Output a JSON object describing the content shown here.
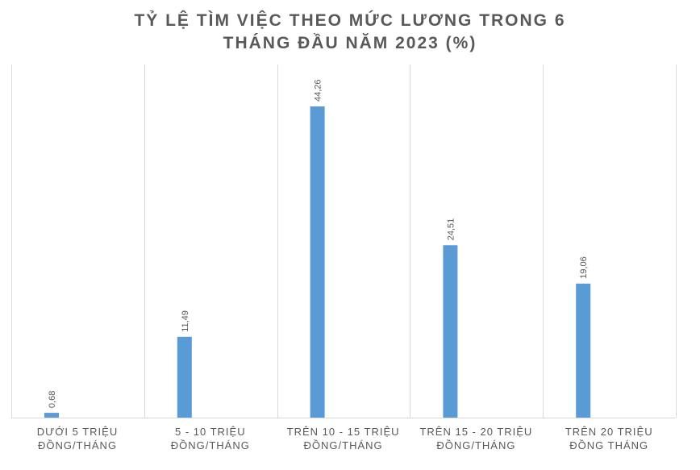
{
  "chart_data": {
    "type": "bar",
    "title_lines": [
      "TỶ LỆ TÌM VIỆC THEO MỨC LƯƠNG TRONG 6",
      "THÁNG ĐẦU NĂM 2023 (%)"
    ],
    "categories": [
      [
        "DƯỚI 5 TRIỆU",
        "ĐỒNG/THÁNG"
      ],
      [
        "5 - 10 TRIỆU",
        "ĐỒNG/THÁNG"
      ],
      [
        "TRÊN 10 - 15 TRIỆU",
        "ĐỒNG/THÁNG"
      ],
      [
        "TRÊN 15 - 20 TRIỆU",
        "ĐỒNG/THÁNG"
      ],
      [
        "TRÊN 20 TRIỆU",
        "ĐỒNG THÁNG"
      ]
    ],
    "values": [
      0.68,
      11.49,
      44.26,
      24.51,
      19.06
    ],
    "data_labels": [
      "0,68",
      "11,49",
      "44,26",
      "24,51",
      "19,06"
    ],
    "ylim": [
      0,
      44.26
    ],
    "bar_color": "#5b9bd5",
    "grid_color": "#d9d9d9",
    "text_color": "#595959",
    "grid": "vertical-category-dividers",
    "legend": "none"
  }
}
